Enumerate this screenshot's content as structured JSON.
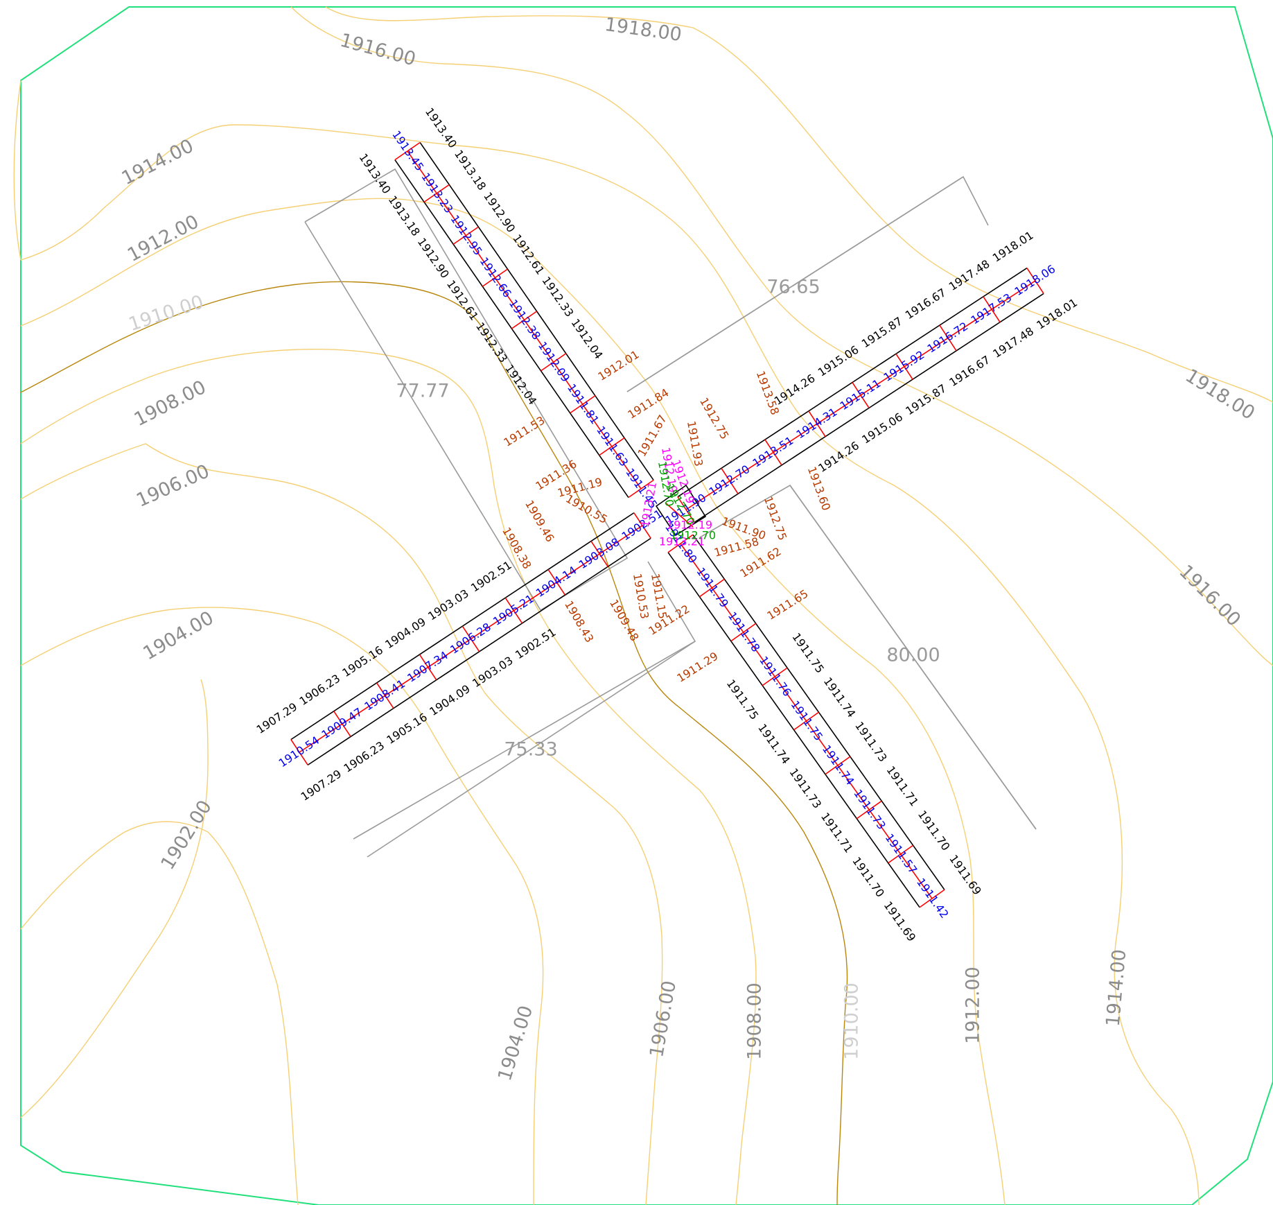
{
  "colors": {
    "contour": "#f5cf73",
    "contour_main": "#b8860b",
    "boundary": "#1fe07a",
    "contour_label": "#8c8c8c",
    "contour_label_main": "#cfcfcf",
    "dimension": "#9a9a9a",
    "road_edge": "#000000",
    "road_center": "#ff0000",
    "design_level": "#0000ee",
    "existing_level": "#000000",
    "natural_level": "#b83a00",
    "junction_magenta": "#ff00ff",
    "junction_green": "#00a000"
  },
  "contour_labels": [
    "1918.00",
    "1916.00",
    "1914.00",
    "1912.00",
    "1910.00",
    "1908.00",
    "1906.00",
    "1904.00",
    "1902.00",
    "1918.00",
    "1916.00",
    "1904.00",
    "1906.00",
    "1908.00",
    "1910.00",
    "1912.00",
    "1914.00"
  ],
  "dimensions": [
    "77.77",
    "76.65",
    "80.00",
    "75.33"
  ],
  "roads": {
    "north": {
      "design": [
        "1913.45",
        "1913.23",
        "1912.95",
        "1912.66",
        "1912.38",
        "1912.09",
        "1911.81",
        "1911.63",
        "1911.45"
      ],
      "left": [
        "1913.40",
        "1913.18",
        "1912.90",
        "1912.61",
        "1912.33",
        "1912.04"
      ],
      "right": [
        "1913.40",
        "1913.18",
        "1912.90",
        "1912.61",
        "1912.33",
        "1912.04"
      ]
    },
    "east": {
      "design": [
        "1918.06",
        "1917.53",
        "1916.72",
        "1915.92",
        "1915.11",
        "1914.31",
        "1913.51",
        "1912.70",
        "1911.90"
      ],
      "left": [
        "1918.01",
        "1917.48",
        "1916.67",
        "1915.87",
        "1915.06",
        "1914.26"
      ],
      "right": [
        "1918.01",
        "1917.48",
        "1916.67",
        "1915.87",
        "1915.06",
        "1914.26"
      ]
    },
    "south": {
      "design": [
        "1911.42",
        "1911.57",
        "1911.73",
        "1911.74",
        "1911.75",
        "1911.76",
        "1911.78",
        "1911.79",
        "1911.80"
      ],
      "left": [
        "1911.69",
        "1911.70",
        "1911.71",
        "1911.73",
        "1911.74",
        "1911.75"
      ],
      "right": [
        "1911.69",
        "1911.70",
        "1911.71",
        "1911.73",
        "1911.74",
        "1911.75"
      ]
    },
    "west": {
      "design": [
        "1910.54",
        "1909.47",
        "1908.41",
        "1907.34",
        "1906.28",
        "1905.21",
        "1904.14",
        "1903.08",
        "1902.51"
      ],
      "left": [
        "1907.29",
        "1906.23",
        "1905.16",
        "1904.09",
        "1903.03",
        "1902.51"
      ],
      "right": [
        "1907.29",
        "1906.23",
        "1905.16",
        "1904.09",
        "1903.03",
        "1902.51"
      ]
    }
  },
  "natural_levels": [
    "1912.01",
    "1911.84",
    "1911.53",
    "1911.67",
    "1911.36",
    "1911.19",
    "1910.55",
    "1909.46",
    "1908.38",
    "1912.75",
    "1911.93",
    "1913.58",
    "1913.60",
    "1912.75",
    "1911.90",
    "1911.58",
    "1911.62",
    "1911.65",
    "1911.29",
    "1910.53",
    "1911.15",
    "1911.22",
    "1909.48",
    "1908.43"
  ],
  "junction_levels": {
    "magenta": [
      "1912.19",
      "1913.21",
      "1912.19",
      "1913.21",
      "1912.19"
    ],
    "green": [
      "1912.70",
      "1912.70",
      "1912.70"
    ]
  }
}
